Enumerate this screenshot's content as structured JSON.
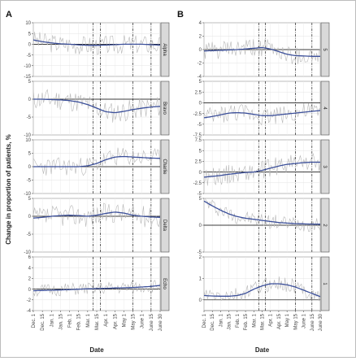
{
  "figure": {
    "ylabel": "Change in proportion of patients, %",
    "xlabel": "Date"
  },
  "chart_data": [
    {
      "type": "line",
      "panel_label": "A",
      "x_ticks": [
        "Dec. 1",
        "Dec. 15",
        "Jan. 1",
        "Jan. 15",
        "Feb. 1",
        "Feb. 15",
        "Mar. 1",
        "Mar. 15",
        "Apr. 1",
        "Apr. 15",
        "May 1",
        "May 15",
        "June 1",
        "June 15",
        "June 30"
      ],
      "vlines": [
        6.6,
        7.4,
        11.0,
        13.0
      ],
      "facets": [
        {
          "strip": "Alpha",
          "ylim": [
            -15,
            10
          ],
          "yticks": [
            -15,
            -10,
            -5,
            0,
            5,
            10
          ],
          "smooth": [
            2,
            1.2,
            0.6,
            0.2,
            0,
            -0.3,
            -0.5,
            -0.5,
            -0.4,
            -0.2,
            0,
            0,
            0,
            -0.2,
            -0.4
          ],
          "amp": 4.5,
          "seed": 3
        },
        {
          "strip": "Bravo",
          "ylim": [
            -10,
            5
          ],
          "yticks": [
            -10,
            -5,
            0,
            5
          ],
          "smooth": [
            0,
            0,
            -0.1,
            -0.2,
            -0.4,
            -0.8,
            -1.5,
            -2.5,
            -3.5,
            -3.8,
            -3.4,
            -2.9,
            -2.5,
            -2.2,
            -2
          ],
          "amp": 3,
          "seed": 11
        },
        {
          "strip": "Charlie",
          "ylim": [
            -10,
            10
          ],
          "yticks": [
            -10,
            -5,
            0,
            5,
            10
          ],
          "smooth": [
            0,
            0,
            0,
            0,
            0,
            0,
            0.3,
            1.2,
            2.6,
            3.6,
            3.8,
            3.6,
            3.4,
            3.2,
            3.1
          ],
          "amp": 3.5,
          "seed": 23
        },
        {
          "strip": "Delta",
          "ylim": [
            -10,
            5
          ],
          "yticks": [
            -10,
            -5,
            0,
            5
          ],
          "smooth": [
            -0.5,
            -0.3,
            0,
            0.2,
            0.3,
            0.2,
            0,
            0.3,
            0.8,
            1.2,
            0.9,
            0.3,
            0,
            -0.2,
            -0.3
          ],
          "amp": 3,
          "seed": 37
        },
        {
          "strip": "Echo",
          "ylim": [
            -4,
            6
          ],
          "yticks": [
            -4,
            -2,
            0,
            2,
            4,
            6
          ],
          "smooth": [
            -0.3,
            -0.25,
            -0.2,
            -0.15,
            -0.1,
            0,
            0.05,
            0.1,
            0.15,
            0.2,
            0.25,
            0.3,
            0.4,
            0.5,
            0.7
          ],
          "amp": 1.2,
          "seed": 51
        }
      ]
    },
    {
      "type": "line",
      "panel_label": "B",
      "x_ticks": [
        "Dec. 1",
        "Dec. 15",
        "Jan. 1",
        "Jan. 15",
        "Feb. 1",
        "Feb. 15",
        "Mar. 1",
        "Mar. 15",
        "Apr. 1",
        "Apr. 15",
        "May 1",
        "May 15",
        "June 1",
        "June 15",
        "June 30"
      ],
      "vlines": [
        6.6,
        7.4,
        11.0,
        13.0
      ],
      "facets": [
        {
          "strip": "5",
          "ylim": [
            -4,
            4
          ],
          "yticks": [
            -4,
            -2,
            0,
            2,
            4
          ],
          "smooth": [
            -0.2,
            -0.15,
            -0.1,
            -0.05,
            0,
            0.1,
            0.2,
            0.3,
            0.1,
            -0.3,
            -0.7,
            -0.9,
            -0.95,
            -1,
            -1
          ],
          "amp": 1.4,
          "seed": 61
        },
        {
          "strip": "4",
          "ylim": [
            -7.5,
            5
          ],
          "yticks": [
            -7.5,
            -5,
            -2.5,
            0,
            2.5,
            5
          ],
          "smooth": [
            -3.5,
            -3.2,
            -2.8,
            -2.4,
            -2.3,
            -2.4,
            -2.7,
            -3,
            -3,
            -2.8,
            -2.6,
            -2.4,
            -2.2,
            -2,
            -1.8
          ],
          "amp": 2.2,
          "seed": 73
        },
        {
          "strip": "3",
          "ylim": [
            -5,
            7.5
          ],
          "yticks": [
            -5,
            -2.5,
            0,
            2.5,
            5,
            7.5
          ],
          "smooth": [
            -1.2,
            -1,
            -0.8,
            -0.5,
            -0.3,
            -0.1,
            0,
            0.4,
            0.9,
            1.4,
            1.8,
            2,
            2.2,
            2.3,
            2.3
          ],
          "amp": 2.2,
          "seed": 89
        },
        {
          "strip": "2",
          "ylim": [
            -5,
            5
          ],
          "yticks": [
            -5,
            0,
            5
          ],
          "smooth": [
            4.5,
            3.6,
            2.8,
            2.1,
            1.6,
            1.3,
            1.1,
            0.9,
            0.7,
            0.5,
            0.4,
            0.3,
            0.25,
            0.2,
            0.2
          ],
          "amp": 1.4,
          "seed": 97
        },
        {
          "strip": "1",
          "ylim": [
            -0.5,
            2
          ],
          "yticks": [
            0,
            1,
            2
          ],
          "smooth": [
            0.2,
            0.18,
            0.17,
            0.17,
            0.2,
            0.3,
            0.5,
            0.65,
            0.75,
            0.75,
            0.7,
            0.6,
            0.45,
            0.3,
            0.15
          ],
          "amp": 0.35,
          "seed": 103
        }
      ]
    }
  ]
}
